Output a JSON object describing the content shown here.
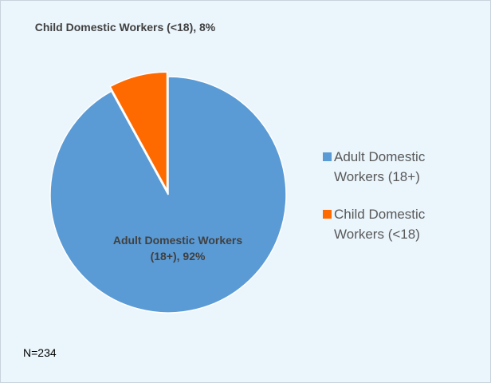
{
  "chart_data": {
    "type": "pie",
    "categories": [
      "Adult Domestic Workers (18+)",
      "Child Domestic Workers (<18)"
    ],
    "values": [
      92,
      8
    ],
    "value_labels": [
      "Adult Domestic Workers (18+), 92%",
      "Child Domestic Workers (<18), 8%"
    ],
    "colors": [
      "#5b9bd5",
      "#ff6a00"
    ],
    "legend": "right",
    "annotation": "N=234"
  }
}
